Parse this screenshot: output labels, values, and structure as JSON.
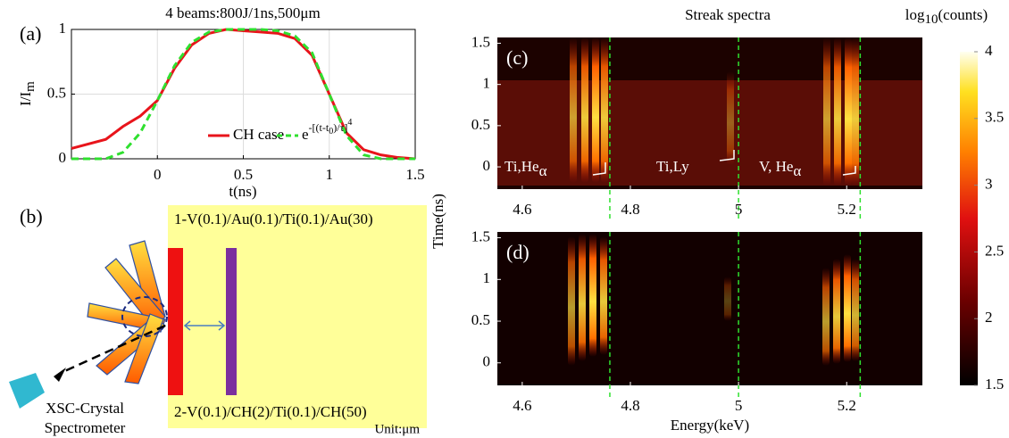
{
  "chart_data": [
    {
      "type": "line",
      "panel": "(a)",
      "title": "4 beams:800J/1ns,500μm",
      "x_label": "t(ns)",
      "y_label": [
        "I/I",
        "m"
      ],
      "x": [
        -0.5,
        -0.3,
        -0.2,
        -0.1,
        0,
        0.1,
        0.2,
        0.3,
        0.4,
        0.5,
        0.6,
        0.7,
        0.8,
        0.9,
        1.0,
        1.1,
        1.2,
        1.3,
        1.4,
        1.5
      ],
      "series": [
        {
          "name": [
            "CH case"
          ],
          "color": "#e8141b",
          "values": [
            0.08,
            0.15,
            0.25,
            0.33,
            0.45,
            0.7,
            0.88,
            0.97,
            1.0,
            0.99,
            0.98,
            0.97,
            0.93,
            0.8,
            0.5,
            0.2,
            0.07,
            0.03,
            0.01,
            0
          ]
        },
        {
          "name": [
            "e",
            "-[(t-t",
            "0",
            ")/τ]",
            "4"
          ],
          "color": "#2fe02f",
          "dash": true,
          "values": [
            0,
            0,
            0.05,
            0.2,
            0.45,
            0.72,
            0.9,
            0.98,
            1.0,
            1.0,
            1.0,
            0.99,
            0.95,
            0.82,
            0.5,
            0.18,
            0.03,
            0,
            0,
            0
          ]
        }
      ],
      "xlim": [
        -0.5,
        1.5
      ],
      "xticks": [
        0,
        0.5,
        1,
        1.5
      ],
      "ylim": [
        0,
        1
      ],
      "yticks": [
        0,
        0.5,
        1
      ],
      "grid": true
    },
    {
      "type": "heatmap",
      "title": "Streak spectra",
      "x_label": "Energy(keV)",
      "y_label": "Time(ns)",
      "colorbar_label": [
        "log",
        "10",
        "(counts)"
      ],
      "clim": [
        1.5,
        4
      ],
      "cticks": [
        1.5,
        2,
        2.5,
        3,
        3.5,
        4
      ],
      "panels": [
        {
          "label": "(c)",
          "annotations": [
            [
              "Ti,He",
              "α"
            ],
            [
              "Ti,Ly"
            ],
            [
              "V, He",
              "α"
            ]
          ]
        },
        {
          "label": "(d)"
        }
      ],
      "xlim": [
        4.554,
        5.34
      ],
      "xticks": [
        4.6,
        4.8,
        5,
        5.2
      ],
      "ylim": [
        -0.27,
        1.57
      ],
      "yticks": [
        0,
        0.5,
        1,
        1.5
      ],
      "reference_lines": [
        4.762,
        5.0,
        5.225
      ]
    }
  ],
  "diagram": {
    "label": "(b)",
    "target_1": "1-V(0.1)/Au(0.1)/Ti(0.1)/Au(30)",
    "target_2": "2-V(0.1)/CH(2)/Ti(0.1)/CH(50)",
    "unit": "Unit:μm",
    "spectrometer": [
      "XSC-Crystal",
      "Spectrometer"
    ]
  }
}
